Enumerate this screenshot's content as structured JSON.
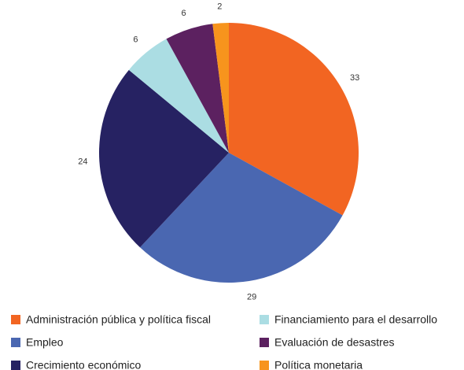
{
  "chart_data": {
    "type": "pie",
    "categories": [
      "Administración pública y política fiscal",
      "Empleo",
      "Crecimiento económico",
      "Financiamiento para el desarrollo",
      "Evaluación de desastres",
      "Política monetaria"
    ],
    "values": [
      33,
      29,
      24,
      6,
      6,
      2
    ],
    "colors": [
      "#f26522",
      "#4a67b1",
      "#262262",
      "#abdde3",
      "#5c2160",
      "#f7941d"
    ]
  }
}
